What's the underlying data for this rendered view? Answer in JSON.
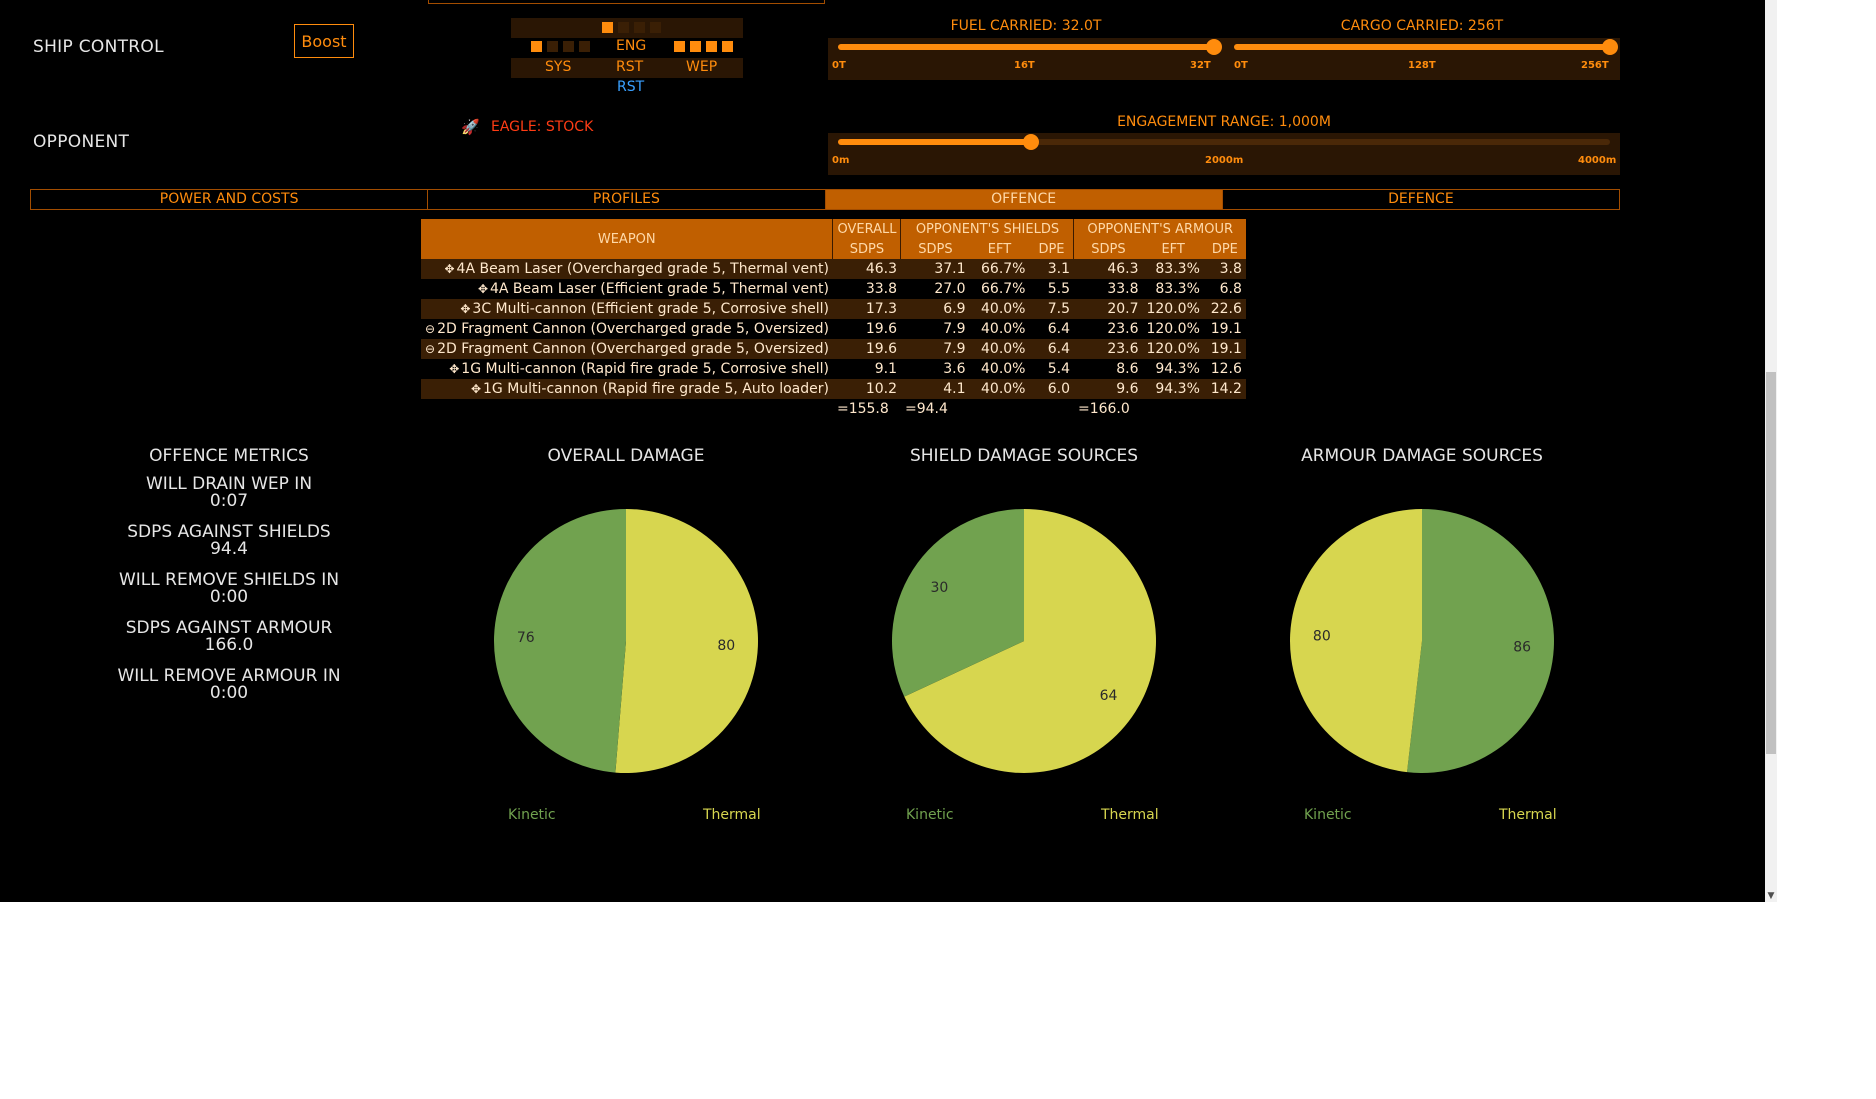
{
  "ship_control": {
    "label": "SHIP CONTROL",
    "boost_label": "Boost"
  },
  "pips": {
    "eng_label": "ENG",
    "sys_label": "SYS",
    "rst_label": "RST",
    "wep_label": "WEP",
    "rst_blue_label": "RST",
    "eng_on": 1,
    "sys_on": 1,
    "wep_on": 4,
    "max": 4
  },
  "fuel": {
    "title": "FUEL CARRIED: 32.0T",
    "value": 32,
    "max": 32,
    "ticks": [
      "0T",
      "16T",
      "32T"
    ]
  },
  "cargo": {
    "title": "CARGO CARRIED: 256T",
    "value": 256,
    "max": 256,
    "ticks": [
      "0T",
      "128T",
      "256T"
    ]
  },
  "opponent": {
    "label": "OPPONENT",
    "ship": "EAGLE: STOCK"
  },
  "engagement": {
    "title": "ENGAGEMENT RANGE: 1,000M",
    "value": 1000,
    "max": 4000,
    "ticks": [
      "0m",
      "2000m",
      "4000m"
    ]
  },
  "tabs": [
    {
      "label": "POWER AND COSTS",
      "active": false
    },
    {
      "label": "PROFILES",
      "active": false
    },
    {
      "label": "OFFENCE",
      "active": true
    },
    {
      "label": "DEFENCE",
      "active": false
    }
  ],
  "weapons_table": {
    "headers": {
      "weapon": "WEAPON",
      "overall": "OVERALL",
      "shields": "OPPONENT'S SHIELDS",
      "armour": "OPPONENT'S ARMOUR"
    },
    "subheaders": [
      "SDPS",
      "SDPS",
      "EFT",
      "DPE",
      "SDPS",
      "EFT",
      "DPE"
    ],
    "rows": [
      {
        "icon": "✥",
        "name": "4A Beam Laser (Overcharged grade 5, Thermal vent)",
        "cells": [
          "46.3",
          "37.1",
          "66.7%",
          "3.1",
          "46.3",
          "83.3%",
          "3.8"
        ]
      },
      {
        "icon": "✥",
        "name": "4A Beam Laser (Efficient grade 5, Thermal vent)",
        "cells": [
          "33.8",
          "27.0",
          "66.7%",
          "5.5",
          "33.8",
          "83.3%",
          "6.8"
        ]
      },
      {
        "icon": "✥",
        "name": "3C Multi-cannon (Efficient grade 5, Corrosive shell)",
        "cells": [
          "17.3",
          "6.9",
          "40.0%",
          "7.5",
          "20.7",
          "120.0%",
          "22.6"
        ]
      },
      {
        "icon": "⊖",
        "name": "2D Fragment Cannon (Overcharged grade 5, Oversized)",
        "cells": [
          "19.6",
          "7.9",
          "40.0%",
          "6.4",
          "23.6",
          "120.0%",
          "19.1"
        ]
      },
      {
        "icon": "⊖",
        "name": "2D Fragment Cannon (Overcharged grade 5, Oversized)",
        "cells": [
          "19.6",
          "7.9",
          "40.0%",
          "6.4",
          "23.6",
          "120.0%",
          "19.1"
        ]
      },
      {
        "icon": "✥",
        "name": "1G Multi-cannon (Rapid fire grade 5, Corrosive shell)",
        "cells": [
          "9.1",
          "3.6",
          "40.0%",
          "5.4",
          "8.6",
          "94.3%",
          "12.6"
        ]
      },
      {
        "icon": "✥",
        "name": "1G Multi-cannon (Rapid fire grade 5, Auto loader)",
        "cells": [
          "10.2",
          "4.1",
          "40.0%",
          "6.0",
          "9.6",
          "94.3%",
          "14.2"
        ]
      }
    ],
    "totals": {
      "overall": "=155.8",
      "shields": "=94.4",
      "armour": "=166.0"
    }
  },
  "metrics": {
    "title": "OFFENCE METRICS",
    "items": [
      {
        "label": "WILL DRAIN WEP IN",
        "value": "0:07"
      },
      {
        "label": "SDPS AGAINST SHIELDS",
        "value": "94.4"
      },
      {
        "label": "WILL REMOVE SHIELDS IN",
        "value": "0:00"
      },
      {
        "label": "SDPS AGAINST ARMOUR",
        "value": "166.0"
      },
      {
        "label": "WILL REMOVE ARMOUR IN",
        "value": "0:00"
      }
    ]
  },
  "colors": {
    "kinetic": "#71a24f",
    "thermal": "#d7d64f",
    "accent": "#ff8c0d"
  },
  "chart_data": [
    {
      "type": "pie",
      "title": "OVERALL DAMAGE",
      "slices": [
        {
          "label": "Kinetic",
          "value": 76
        },
        {
          "label": "Thermal",
          "value": 80
        }
      ]
    },
    {
      "type": "pie",
      "title": "SHIELD DAMAGE SOURCES",
      "slices": [
        {
          "label": "Kinetic",
          "value": 30
        },
        {
          "label": "Thermal",
          "value": 64
        }
      ]
    },
    {
      "type": "pie",
      "title": "ARMOUR DAMAGE SOURCES",
      "slices": [
        {
          "label": "Kinetic",
          "value": 86
        },
        {
          "label": "Thermal",
          "value": 80
        }
      ]
    }
  ]
}
